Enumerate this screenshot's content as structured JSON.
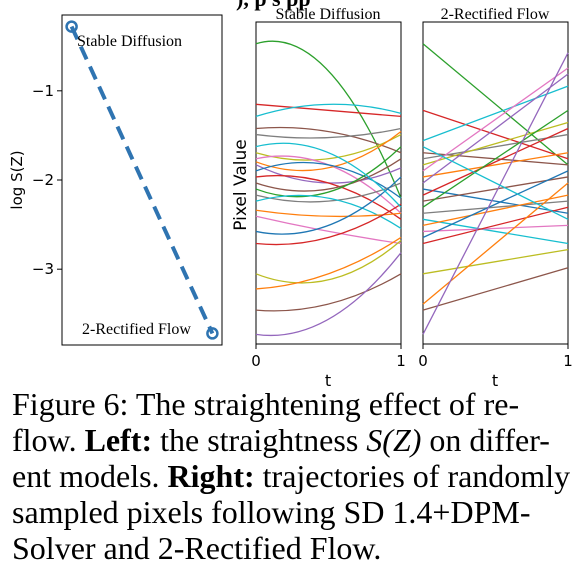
{
  "header_fragment": "), p        s     pp",
  "chart_data": [
    {
      "type": "line",
      "title": "",
      "xlabel": "",
      "ylabel": "log S(Z)",
      "yticks": [
        -1,
        -2,
        -3
      ],
      "ylim": [
        -3.85,
        -0.15
      ],
      "xlim": [
        0,
        1
      ],
      "series": [
        {
          "x": [
            0.06,
            0.94
          ],
          "y": [
            -0.28,
            -3.72
          ],
          "style": "dashed",
          "color": "#2f74b1"
        }
      ],
      "annotations": [
        {
          "text": "Stable Diffusion",
          "x": 0.06,
          "y": -0.28
        },
        {
          "text": "2-Rectified Flow",
          "x": 0.94,
          "y": -3.72
        }
      ]
    },
    {
      "type": "line",
      "title": "Stable Diffusion",
      "xlabel": "t",
      "ylabel": "Pixel Value",
      "xticks": [
        0,
        1
      ],
      "xlim": [
        0,
        1
      ],
      "ylim": [
        0,
        1
      ],
      "series": [
        {
          "color": "#2ca02c",
          "y": [
            0.96,
            0.87,
            0.45
          ]
        },
        {
          "color": "#d62728",
          "y": [
            0.76,
            0.74,
            0.72
          ]
        },
        {
          "color": "#17becf",
          "y": [
            0.72,
            0.76,
            0.73
          ]
        },
        {
          "color": "#8c564b",
          "y": [
            0.68,
            0.67,
            0.6
          ]
        },
        {
          "color": "#7f7f7f",
          "y": [
            0.66,
            0.65,
            0.68
          ]
        },
        {
          "color": "#bcbd22",
          "y": [
            0.6,
            0.58,
            0.66
          ]
        },
        {
          "color": "#e377c2",
          "y": [
            0.58,
            0.56,
            0.4
          ]
        },
        {
          "color": "#ff7f0e",
          "y": [
            0.57,
            0.55,
            0.67
          ]
        },
        {
          "color": "#9467bd",
          "y": [
            0.56,
            0.5,
            0.55
          ]
        },
        {
          "color": "#1f77b4",
          "y": [
            0.54,
            0.56,
            0.45
          ]
        },
        {
          "color": "#d62728",
          "y": [
            0.52,
            0.5,
            0.38
          ]
        },
        {
          "color": "#8c564b",
          "y": [
            0.5,
            0.48,
            0.58
          ]
        },
        {
          "color": "#2ca02c",
          "y": [
            0.48,
            0.47,
            0.62
          ]
        },
        {
          "color": "#7f7f7f",
          "y": [
            0.46,
            0.44,
            0.5
          ]
        },
        {
          "color": "#17becf",
          "y": [
            0.44,
            0.45,
            0.35
          ]
        },
        {
          "color": "#ff7f0e",
          "y": [
            0.41,
            0.39,
            0.4
          ]
        },
        {
          "color": "#e377c2",
          "y": [
            0.39,
            0.34,
            0.3
          ]
        },
        {
          "color": "#1f77b4",
          "y": [
            0.34,
            0.36,
            0.52
          ]
        },
        {
          "color": "#d62728",
          "y": [
            0.3,
            0.32,
            0.43
          ]
        },
        {
          "color": "#bcbd22",
          "y": [
            0.2,
            0.18,
            0.31
          ]
        },
        {
          "color": "#ff7f0e",
          "y": [
            0.15,
            0.2,
            0.32
          ]
        },
        {
          "color": "#8c564b",
          "y": [
            0.08,
            0.1,
            0.2
          ]
        },
        {
          "color": "#9467bd",
          "y": [
            0.0,
            0.05,
            0.27
          ]
        },
        {
          "color": "#17becf",
          "y": [
            0.62,
            0.6,
            0.42
          ]
        }
      ]
    },
    {
      "type": "line",
      "title": "2-Rectified Flow",
      "xlabel": "t",
      "ylabel": "",
      "xticks": [
        0,
        1
      ],
      "xlim": [
        0,
        1
      ],
      "ylim": [
        0,
        1
      ],
      "series": [
        {
          "color": "#2ca02c",
          "y": [
            0.96,
            0.56
          ]
        },
        {
          "color": "#d62728",
          "y": [
            0.74,
            0.58
          ]
        },
        {
          "color": "#17becf",
          "y": [
            0.64,
            0.82
          ]
        },
        {
          "color": "#8c564b",
          "y": [
            0.6,
            0.56
          ]
        },
        {
          "color": "#7f7f7f",
          "y": [
            0.58,
            0.66
          ]
        },
        {
          "color": "#bcbd22",
          "y": [
            0.56,
            0.7
          ]
        },
        {
          "color": "#e377c2",
          "y": [
            0.54,
            0.88
          ]
        },
        {
          "color": "#ff7f0e",
          "y": [
            0.52,
            0.6
          ]
        },
        {
          "color": "#9467bd",
          "y": [
            0.5,
            0.86
          ]
        },
        {
          "color": "#1f77b4",
          "y": [
            0.48,
            0.4
          ]
        },
        {
          "color": "#d62728",
          "y": [
            0.46,
            0.68
          ]
        },
        {
          "color": "#8c564b",
          "y": [
            0.44,
            0.52
          ]
        },
        {
          "color": "#2ca02c",
          "y": [
            0.42,
            0.74
          ]
        },
        {
          "color": "#7f7f7f",
          "y": [
            0.4,
            0.44
          ]
        },
        {
          "color": "#17becf",
          "y": [
            0.38,
            0.3
          ]
        },
        {
          "color": "#ff7f0e",
          "y": [
            0.36,
            0.46
          ]
        },
        {
          "color": "#e377c2",
          "y": [
            0.34,
            0.36
          ]
        },
        {
          "color": "#1f77b4",
          "y": [
            0.32,
            0.54
          ]
        },
        {
          "color": "#d62728",
          "y": [
            0.3,
            0.42
          ]
        },
        {
          "color": "#bcbd22",
          "y": [
            0.2,
            0.28
          ]
        },
        {
          "color": "#ff7f0e",
          "y": [
            0.1,
            0.5
          ]
        },
        {
          "color": "#8c564b",
          "y": [
            0.08,
            0.22
          ]
        },
        {
          "color": "#9467bd",
          "y": [
            0.0,
            0.93
          ]
        },
        {
          "color": "#17becf",
          "y": [
            0.62,
            0.38
          ]
        }
      ]
    }
  ],
  "caption": {
    "line1": "Figure 6:  The straightening effect of re-",
    "line2_rest": "flow. ",
    "left_label": "Left:",
    "left_text_a": " the straightness ",
    "math": "S(Z)",
    "left_text_b": " on differ-",
    "line3_a": "ent models. ",
    "right_label": "Right:",
    "line3_b": " trajectories of randomly",
    "line4": "sampled pixels following SD 1.4+DPM-",
    "line5": "Solver and 2-Rectified Flow."
  }
}
